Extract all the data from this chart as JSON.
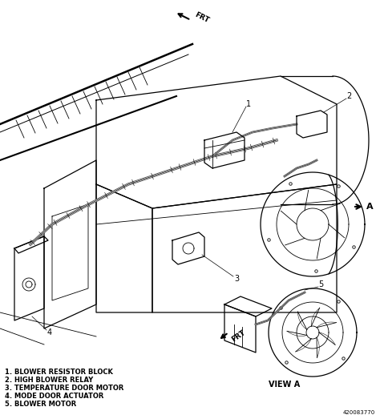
{
  "background_color": "#ffffff",
  "fig_width": 4.74,
  "fig_height": 5.23,
  "dpi": 100,
  "legend_items": [
    "1. BLOWER RESISTOR BLOCK",
    "2. HIGH BLOWER RELAY",
    "3. TEMPERATURE DOOR MOTOR",
    "4. MODE DOOR ACTUATOR",
    "5. BLOWER MOTOR"
  ],
  "legend_fontsize": 6.0,
  "part_number": "420083770",
  "frt_label": "FRT",
  "frt2_label": "FRT",
  "view_a_label": "VIEW A",
  "text_color": "#000000",
  "diagram_color": "#000000",
  "gray_color": "#aaaaaa"
}
